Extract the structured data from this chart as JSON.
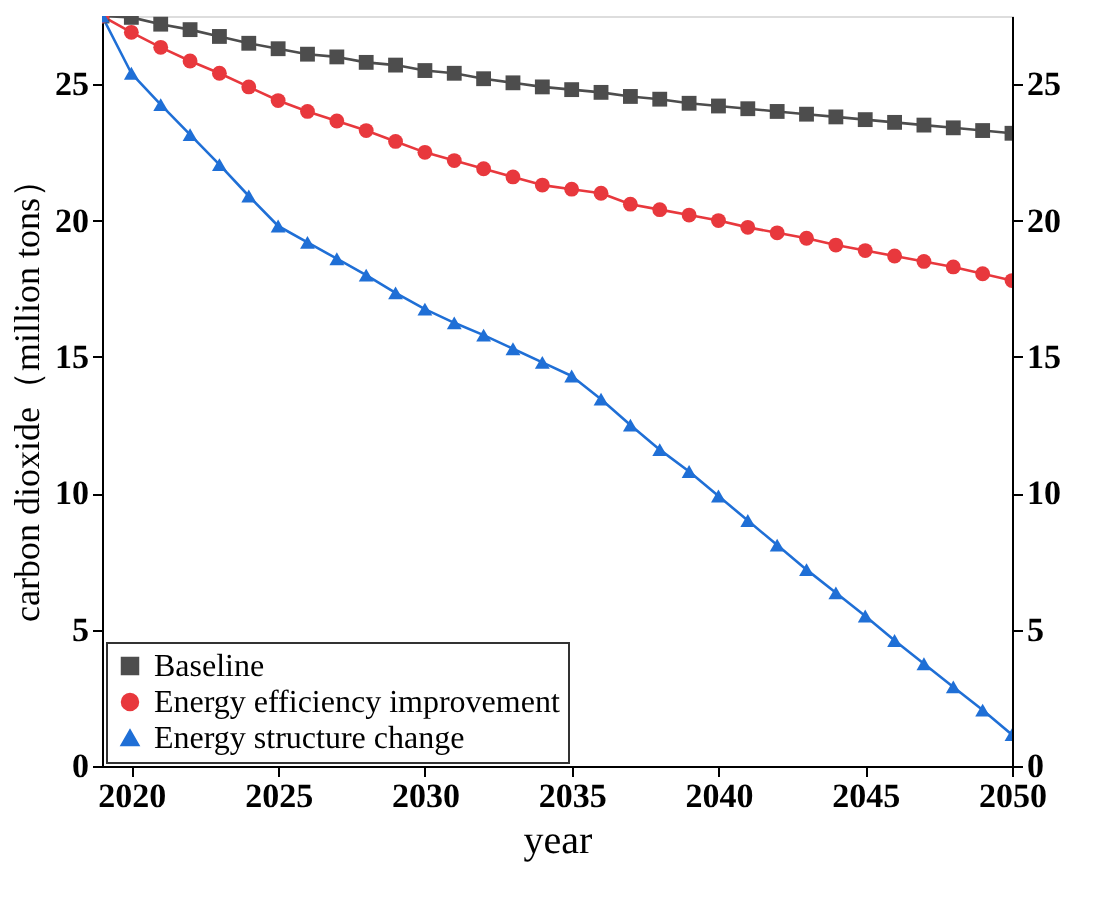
{
  "chart_data": {
    "type": "line",
    "xlabel": "year",
    "ylabel": "carbon dioxide（million tons）",
    "x": [
      2019,
      2020,
      2021,
      2022,
      2023,
      2024,
      2025,
      2026,
      2027,
      2028,
      2029,
      2030,
      2031,
      2032,
      2033,
      2034,
      2035,
      2036,
      2037,
      2038,
      2039,
      2040,
      2041,
      2042,
      2043,
      2044,
      2045,
      2046,
      2047,
      2048,
      2049,
      2050
    ],
    "series": [
      {
        "name": "Baseline",
        "color": "#4d4d4d",
        "marker": "square",
        "values": [
          27.5,
          27.45,
          27.2,
          27.0,
          26.75,
          26.5,
          26.3,
          26.1,
          26.0,
          25.8,
          25.7,
          25.5,
          25.4,
          25.2,
          25.05,
          24.9,
          24.8,
          24.7,
          24.55,
          24.45,
          24.3,
          24.2,
          24.1,
          24.0,
          23.9,
          23.8,
          23.7,
          23.6,
          23.5,
          23.4,
          23.3,
          23.2
        ]
      },
      {
        "name": "Energy efficiency improvement",
        "color": "#e8383d",
        "marker": "circle",
        "values": [
          27.5,
          26.9,
          26.35,
          25.85,
          25.4,
          24.9,
          24.4,
          24.0,
          23.65,
          23.3,
          22.9,
          22.5,
          22.2,
          21.9,
          21.6,
          21.3,
          21.15,
          21.0,
          20.6,
          20.4,
          20.2,
          20.0,
          19.75,
          19.55,
          19.35,
          19.1,
          18.9,
          18.7,
          18.5,
          18.3,
          18.05,
          17.8
        ]
      },
      {
        "name": "Energy structure change",
        "color": "#1f6fd6",
        "marker": "triangle",
        "values": [
          27.5,
          25.4,
          24.25,
          23.15,
          22.05,
          20.9,
          19.8,
          19.2,
          18.6,
          18.0,
          17.35,
          16.75,
          16.25,
          15.8,
          15.3,
          14.8,
          14.3,
          13.45,
          12.5,
          11.6,
          10.8,
          9.9,
          9.0,
          8.1,
          7.2,
          6.35,
          5.5,
          4.6,
          3.75,
          2.9,
          2.05,
          1.15
        ]
      }
    ],
    "xlim": [
      2019,
      2050
    ],
    "xticks": [
      2020,
      2025,
      2030,
      2035,
      2040,
      2045,
      2050
    ],
    "ylim": [
      0,
      27.5
    ],
    "yticks": [
      0,
      5,
      10,
      15,
      20,
      25
    ],
    "y2lim": [
      0,
      27.5
    ],
    "y2ticks": [
      0,
      5,
      10,
      15,
      20,
      25
    ],
    "grid": false,
    "legend": "bottom left"
  }
}
